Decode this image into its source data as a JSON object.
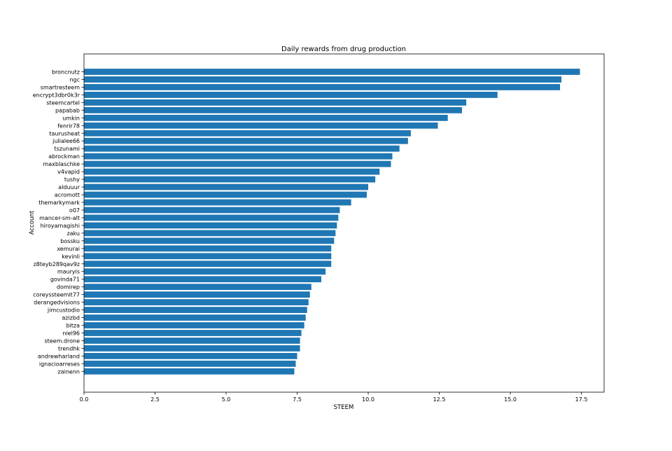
{
  "chart_data": {
    "type": "bar",
    "orientation": "horizontal",
    "title": "Daily rewards from drug production",
    "xlabel": "STEEM",
    "ylabel": "Account",
    "xlim": [
      0,
      18.3
    ],
    "xticks": [
      0.0,
      2.5,
      5.0,
      7.5,
      10.0,
      12.5,
      15.0,
      17.5
    ],
    "xtick_labels": [
      "0.0",
      "2.5",
      "5.0",
      "7.5",
      "10.0",
      "12.5",
      "15.0",
      "17.5"
    ],
    "grid": false,
    "bar_color": "#1f77b4",
    "categories": [
      "broncnutz",
      "ngc",
      "smartresteem",
      "encrypt3dbr0k3r",
      "steemcartel",
      "papabab",
      "umkin",
      "fenrir78",
      "taurusheat",
      "julialee66",
      "tszunami",
      "abrockman",
      "maxblaschke",
      "v4vapid",
      "tushy",
      "alduuur",
      "acromott",
      "themarkymark",
      "o07",
      "mancer-sm-alt",
      "hiroyamagishi",
      "zaku",
      "bossku",
      "xemurai",
      "kevinli",
      "z8teyb289qav9z",
      "mauryis",
      "govinda71",
      "domirep",
      "coreyssteemit77",
      "derangedvisions",
      "jimcustodio",
      "azizbd",
      "bitza",
      "niel96",
      "steem.drone",
      "trendhk",
      "andrewharland",
      "ignacioarreses",
      "zainenn"
    ],
    "values": [
      17.45,
      16.8,
      16.75,
      14.55,
      13.45,
      13.3,
      12.8,
      12.45,
      11.5,
      11.4,
      11.1,
      10.85,
      10.8,
      10.4,
      10.25,
      10.0,
      9.95,
      9.4,
      9.0,
      8.95,
      8.9,
      8.85,
      8.8,
      8.7,
      8.7,
      8.7,
      8.5,
      8.35,
      8.0,
      7.95,
      7.9,
      7.85,
      7.8,
      7.75,
      7.65,
      7.6,
      7.6,
      7.5,
      7.45,
      7.4
    ]
  }
}
